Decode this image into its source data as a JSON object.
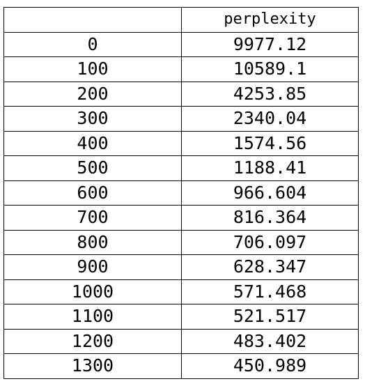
{
  "table": {
    "headers": [
      "",
      "perplexity"
    ],
    "rows": [
      [
        "0",
        "9977.12"
      ],
      [
        "100",
        "10589.1"
      ],
      [
        "200",
        "4253.85"
      ],
      [
        "300",
        "2340.04"
      ],
      [
        "400",
        "1574.56"
      ],
      [
        "500",
        "1188.41"
      ],
      [
        "600",
        "966.604"
      ],
      [
        "700",
        "816.364"
      ],
      [
        "800",
        "706.097"
      ],
      [
        "900",
        "628.347"
      ],
      [
        "1000",
        "571.468"
      ],
      [
        "1100",
        "521.517"
      ],
      [
        "1200",
        "483.402"
      ],
      [
        "1300",
        "450.989"
      ]
    ]
  }
}
